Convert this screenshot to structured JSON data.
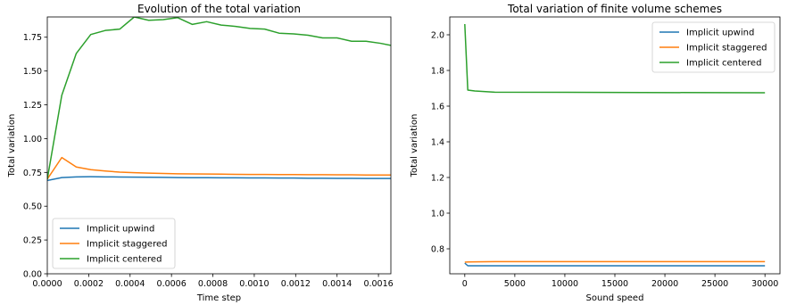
{
  "chart_data": [
    {
      "type": "line",
      "title": "Evolution of the total variation",
      "xlabel": "Time step",
      "ylabel": "Total variation",
      "xlim": [
        0.0,
        0.00166
      ],
      "ylim": [
        0.0,
        1.9
      ],
      "xticks": [
        0.0,
        0.0002,
        0.0004,
        0.0006,
        0.0008,
        0.001,
        0.0012,
        0.0014,
        0.0016
      ],
      "xtick_labels": [
        "0.0000",
        "0.0002",
        "0.0004",
        "0.0006",
        "0.0008",
        "0.0010",
        "0.0012",
        "0.0014",
        "0.0016"
      ],
      "yticks": [
        0.0,
        0.25,
        0.5,
        0.75,
        1.0,
        1.25,
        1.5,
        1.75
      ],
      "ytick_labels": [
        "0.00",
        "0.25",
        "0.50",
        "0.75",
        "1.00",
        "1.25",
        "1.50",
        "1.75"
      ],
      "legend_position": "lower-left",
      "grid": false,
      "series": [
        {
          "name": "Implicit upwind",
          "color": "#1f77b4",
          "x": [
            0.0,
            7e-05,
            0.00014,
            0.00021,
            0.00028,
            0.00035,
            0.00042,
            0.00049,
            0.00056,
            0.00063,
            0.0007,
            0.00077,
            0.00084,
            0.00091,
            0.00098,
            0.00105,
            0.00112,
            0.00119,
            0.00126,
            0.00133,
            0.0014,
            0.00147,
            0.00154,
            0.00161,
            0.00166
          ],
          "y": [
            0.69,
            0.712,
            0.717,
            0.718,
            0.717,
            0.716,
            0.715,
            0.714,
            0.713,
            0.712,
            0.711,
            0.711,
            0.71,
            0.71,
            0.709,
            0.709,
            0.708,
            0.708,
            0.707,
            0.707,
            0.706,
            0.706,
            0.705,
            0.705,
            0.705
          ]
        },
        {
          "name": "Implicit staggered",
          "color": "#ff7f0e",
          "x": [
            0.0,
            7e-05,
            0.00014,
            0.00021,
            0.00028,
            0.00035,
            0.00042,
            0.00049,
            0.00056,
            0.00063,
            0.0007,
            0.00077,
            0.00084,
            0.00091,
            0.00098,
            0.00105,
            0.00112,
            0.00119,
            0.00126,
            0.00133,
            0.0014,
            0.00147,
            0.00154,
            0.00161,
            0.00166
          ],
          "y": [
            0.7,
            0.86,
            0.79,
            0.77,
            0.76,
            0.752,
            0.748,
            0.745,
            0.742,
            0.74,
            0.739,
            0.738,
            0.737,
            0.736,
            0.735,
            0.735,
            0.734,
            0.734,
            0.733,
            0.733,
            0.732,
            0.732,
            0.731,
            0.731,
            0.731
          ]
        },
        {
          "name": "Implicit centered",
          "color": "#2ca02c",
          "x": [
            0.0,
            7e-05,
            0.00014,
            0.00021,
            0.00028,
            0.00035,
            0.00042,
            0.00049,
            0.00056,
            0.00063,
            0.0007,
            0.00077,
            0.00084,
            0.00091,
            0.00098,
            0.00105,
            0.00112,
            0.00119,
            0.00126,
            0.00133,
            0.0014,
            0.00147,
            0.00154,
            0.00161,
            0.00166
          ],
          "y": [
            0.7,
            1.32,
            1.63,
            1.77,
            1.8,
            1.81,
            1.9,
            1.875,
            1.88,
            1.895,
            1.845,
            1.865,
            1.84,
            1.83,
            1.815,
            1.81,
            1.78,
            1.775,
            1.765,
            1.745,
            1.745,
            1.72,
            1.72,
            1.705,
            1.69
          ]
        }
      ]
    },
    {
      "type": "line",
      "title": "Total variation of finite volume schemes",
      "xlabel": "Sound speed",
      "ylabel": "Total variation",
      "xlim": [
        -1500,
        31500
      ],
      "ylim": [
        0.66,
        2.1
      ],
      "xticks": [
        0,
        5000,
        10000,
        15000,
        20000,
        25000,
        30000
      ],
      "xtick_labels": [
        "0",
        "5000",
        "10000",
        "15000",
        "20000",
        "25000",
        "30000"
      ],
      "yticks": [
        0.8,
        1.0,
        1.2,
        1.4,
        1.6,
        1.8,
        2.0
      ],
      "ytick_labels": [
        "0.8",
        "1.0",
        "1.2",
        "1.4",
        "1.6",
        "1.8",
        "2.0"
      ],
      "legend_position": "upper-right",
      "grid": false,
      "series": [
        {
          "name": "Implicit upwind",
          "color": "#1f77b4",
          "x": [
            0,
            300,
            1000,
            3000,
            30000
          ],
          "y": [
            0.72,
            0.705,
            0.705,
            0.705,
            0.705
          ]
        },
        {
          "name": "Implicit staggered",
          "color": "#ff7f0e",
          "x": [
            0,
            300,
            1000,
            3000,
            30000
          ],
          "y": [
            0.725,
            0.726,
            0.727,
            0.728,
            0.728
          ]
        },
        {
          "name": "Implicit centered",
          "color": "#2ca02c",
          "x": [
            0,
            300,
            1000,
            3000,
            30000
          ],
          "y": [
            2.06,
            1.69,
            1.685,
            1.678,
            1.675
          ]
        }
      ]
    }
  ]
}
